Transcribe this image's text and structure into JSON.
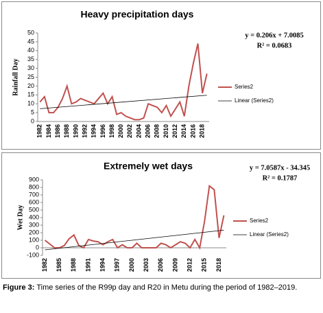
{
  "chart_data": [
    {
      "type": "line",
      "title": "Heavy precipitation days",
      "y_label": "Rainfall Day",
      "categories": [
        "1982",
        null,
        "1984",
        null,
        "1986",
        null,
        "1988",
        null,
        "1990",
        null,
        "1992",
        null,
        "1994",
        null,
        "1996",
        null,
        "1998",
        null,
        "2000",
        null,
        "2002",
        null,
        "2004",
        null,
        "2006",
        null,
        "2008",
        null,
        "2010",
        null,
        "2012",
        null,
        "2014",
        null,
        "2016",
        null,
        "2018",
        null
      ],
      "series": [
        {
          "name": "Series2",
          "color": "#c0504d",
          "values": [
            11,
            14,
            5,
            5,
            8,
            13,
            20,
            10,
            11,
            13,
            12,
            11,
            10,
            13,
            16,
            10,
            14,
            4,
            5,
            3,
            2,
            1,
            1,
            2,
            10,
            9,
            8,
            5,
            9,
            3,
            7,
            11,
            3,
            20,
            33,
            44,
            16,
            27
          ]
        }
      ],
      "trendline": {
        "name": "Linear (Series2)",
        "color": "#000000",
        "slope": 0.206,
        "intercept": 7.0085,
        "equation": "y = 0.206x + 7.0085",
        "r2": "R² = 0.0683"
      },
      "ylim": [
        0,
        50
      ],
      "yticks": [
        0,
        5,
        10,
        15,
        20,
        25,
        30,
        35,
        40,
        45,
        50
      ],
      "grid": false
    },
    {
      "type": "line",
      "title": "Extremely wet days",
      "y_label": "Wet Day",
      "categories": [
        "1982",
        null,
        null,
        "1985",
        null,
        null,
        "1988",
        null,
        null,
        "1991",
        null,
        null,
        "1994",
        null,
        null,
        "1997",
        null,
        null,
        "2000",
        null,
        null,
        "2003",
        null,
        null,
        "2006",
        null,
        null,
        "2009",
        null,
        null,
        "2012",
        null,
        null,
        "2015",
        null,
        null,
        "2018",
        null
      ],
      "series": [
        {
          "name": "Series2",
          "color": "#c0504d",
          "values": [
            100,
            50,
            0,
            0,
            30,
            120,
            170,
            30,
            0,
            110,
            90,
            80,
            40,
            80,
            110,
            0,
            40,
            0,
            0,
            60,
            0,
            0,
            0,
            0,
            60,
            40,
            0,
            40,
            80,
            60,
            0,
            110,
            0,
            350,
            820,
            770,
            130,
            430
          ]
        }
      ],
      "trendline": {
        "name": "Linear (Series2)",
        "color": "#000000",
        "slope": 7.0587,
        "intercept": -34.345,
        "equation": "y = 7.0587x - 34.345",
        "r2": "R² = 0.1787"
      },
      "ylim": [
        -100,
        900
      ],
      "yticks": [
        -100,
        0,
        100,
        200,
        300,
        400,
        500,
        600,
        700,
        800,
        900
      ],
      "grid": false
    }
  ],
  "caption": {
    "label": "Figure 3:",
    "text": "Time series of the R99p day and R20 in Metu during the period of 1982–2019."
  }
}
